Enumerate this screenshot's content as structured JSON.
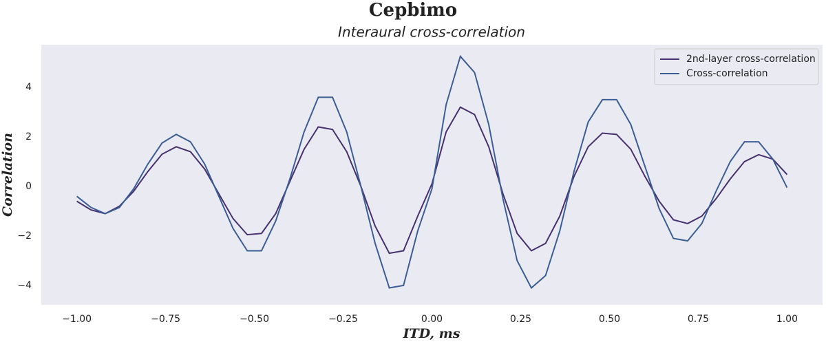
{
  "chart_data": {
    "type": "line",
    "suptitle": "Cepbimo",
    "title": "Interaural cross-correlation",
    "xlabel": "ITD, ms",
    "ylabel": "Correlation",
    "x": [
      -1.0,
      -0.96,
      -0.92,
      -0.88,
      -0.84,
      -0.8,
      -0.76,
      -0.72,
      -0.68,
      -0.64,
      -0.6,
      -0.56,
      -0.52,
      -0.48,
      -0.44,
      -0.4,
      -0.36,
      -0.32,
      -0.28,
      -0.24,
      -0.2,
      -0.16,
      -0.12,
      -0.08,
      -0.04,
      0.0,
      0.04,
      0.08,
      0.12,
      0.16,
      0.2,
      0.24,
      0.28,
      0.32,
      0.36,
      0.4,
      0.44,
      0.48,
      0.52,
      0.56,
      0.6,
      0.64,
      0.68,
      0.72,
      0.76,
      0.8,
      0.84,
      0.88,
      0.92,
      0.96,
      1.0
    ],
    "series": [
      {
        "name": "2nd-layer cross-correlation",
        "color": "#46306e",
        "values": [
          -0.6,
          -0.95,
          -1.1,
          -0.8,
          -0.2,
          0.6,
          1.3,
          1.6,
          1.4,
          0.7,
          -0.3,
          -1.3,
          -1.95,
          -1.9,
          -1.1,
          0.2,
          1.5,
          2.4,
          2.3,
          1.4,
          0.0,
          -1.6,
          -2.7,
          -2.6,
          -1.2,
          0.1,
          2.2,
          3.2,
          2.9,
          1.6,
          -0.3,
          -1.9,
          -2.6,
          -2.3,
          -1.2,
          0.4,
          1.6,
          2.15,
          2.1,
          1.5,
          0.4,
          -0.6,
          -1.35,
          -1.5,
          -1.2,
          -0.5,
          0.3,
          1.0,
          1.28,
          1.1,
          0.48
        ]
      },
      {
        "name": "Cross-correlation",
        "color": "#3a5e94",
        "values": [
          -0.4,
          -0.85,
          -1.1,
          -0.85,
          -0.1,
          0.9,
          1.75,
          2.1,
          1.8,
          0.9,
          -0.4,
          -1.7,
          -2.6,
          -2.6,
          -1.4,
          0.3,
          2.2,
          3.6,
          3.6,
          2.2,
          0.0,
          -2.3,
          -4.1,
          -4.0,
          -1.8,
          -0.1,
          3.3,
          5.25,
          4.6,
          2.5,
          -0.5,
          -3.0,
          -4.1,
          -3.6,
          -1.8,
          0.6,
          2.6,
          3.5,
          3.5,
          2.5,
          0.8,
          -0.9,
          -2.1,
          -2.2,
          -1.5,
          -0.2,
          1.0,
          1.8,
          1.8,
          1.1,
          -0.05
        ]
      }
    ],
    "xlim": [
      -1.1,
      1.1
    ],
    "ylim": [
      -4.78,
      5.72
    ],
    "xticks": [
      {
        "value": -1,
        "label": "−1.00"
      },
      {
        "value": -0.75,
        "label": "−0.75"
      },
      {
        "value": -0.5,
        "label": "−0.50"
      },
      {
        "value": -0.25,
        "label": "−0.25"
      },
      {
        "value": 0,
        "label": "0.00"
      },
      0.25,
      {
        "value": 0.5,
        "label": "0.50"
      },
      0.75,
      {
        "value": 1,
        "label": "1.00"
      }
    ],
    "yticks": [
      {
        "value": -4,
        "label": "−4"
      },
      {
        "value": -2,
        "label": "−2"
      },
      0,
      2,
      4
    ],
    "grid": false,
    "legend": "upper right"
  }
}
